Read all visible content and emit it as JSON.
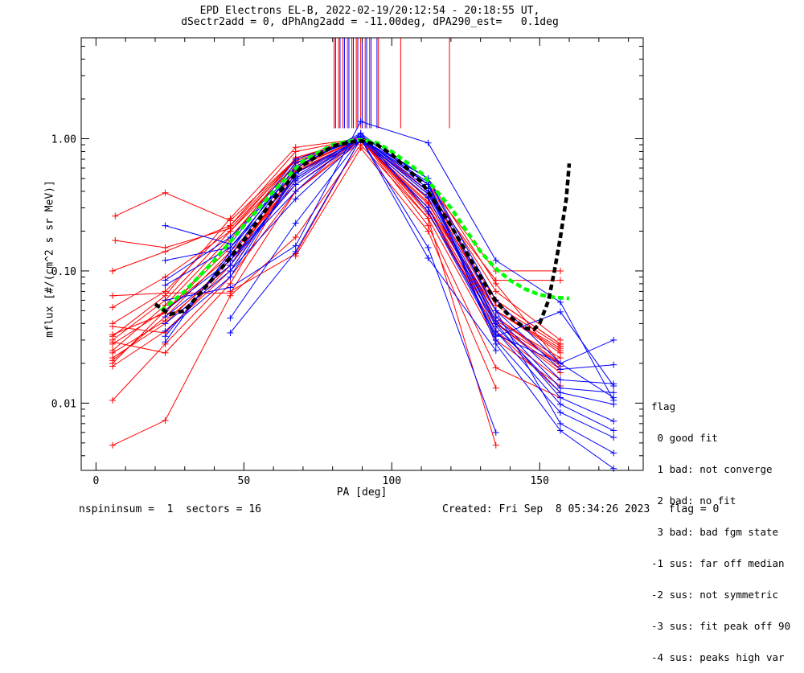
{
  "header": {
    "title_line1": "EPD Electrons EL-B, 2022-02-19/20:12:54 - 20:18:55 UT,",
    "title_line2": "dSectr2add = 0, dPhAng2add = -11.00deg, dPA290_est=   0.1deg"
  },
  "footer": {
    "left": "nspininsum =  1  sectors = 16",
    "right": "Created: Fri Sep  8 05:34:26 2023   flag = 0"
  },
  "flag_legend": {
    "title": "flag",
    "entries": [
      " 0 good fit",
      " 1 bad: not converge",
      " 2 bad: no fit",
      " 3 bad: bad fgm state",
      "-1 sus: far off median",
      "-2 sus: not symmetric",
      "-3 sus: fit peak off 90",
      "-4 sus: peaks high var"
    ]
  },
  "chart_data": {
    "type": "line",
    "xlabel": "PA [deg]",
    "ylabel": "mflux [#/(cm^2 s sr MeV)]",
    "xlim": [
      -5,
      185
    ],
    "ylim": [
      0.0031,
      5.8
    ],
    "yscale": "log",
    "x_ticks": [
      0,
      50,
      100,
      150
    ],
    "y_ticks": [
      {
        "value": 0.01,
        "label": "0.01"
      },
      {
        "value": 0.1,
        "label": "0.10"
      },
      {
        "value": 1.0,
        "label": "1.00"
      }
    ],
    "colors": {
      "red": "#ff0000",
      "blue": "#0000ff",
      "green": "#00ff00",
      "black": "#000000"
    },
    "peak_markers": {
      "ymin": 1.2,
      "ymax": 5.8,
      "red_x": [
        80.5,
        82.0,
        83.5,
        85.0,
        86.5,
        88.0,
        89.5,
        91.0,
        92.5,
        95.5,
        103.0,
        119.5
      ],
      "blue_x": [
        81.0,
        82.5,
        84.0,
        85.5,
        87.0,
        88.5,
        90.0,
        91.5,
        93.0,
        95.0
      ]
    },
    "series": [
      {
        "color": "red",
        "x": [
          5.6,
          23.4,
          45.4,
          67.5,
          89.5,
          112.3,
          135.2,
          157.0
        ],
        "y": [
          0.02,
          0.05,
          0.15,
          0.6,
          1.0,
          0.35,
          0.045,
          0.02
        ]
      },
      {
        "color": "red",
        "x": [
          5.6,
          23.4,
          45.4,
          67.5,
          89.5,
          112.3,
          135.2,
          157.0
        ],
        "y": [
          0.022,
          0.04,
          0.12,
          0.5,
          1.0,
          0.3,
          0.04,
          0.018
        ]
      },
      {
        "color": "red",
        "x": [
          5.6,
          23.4,
          45.4,
          67.5,
          89.5,
          112.3,
          135.2,
          157.0
        ],
        "y": [
          0.019,
          0.035,
          0.1,
          0.55,
          0.95,
          0.32,
          0.05,
          0.025
        ]
      },
      {
        "color": "red",
        "x": [
          5.6,
          23.4,
          45.4,
          67.5,
          89.5,
          112.3,
          135.2,
          157.0
        ],
        "y": [
          0.03,
          0.06,
          0.2,
          0.7,
          1.05,
          0.4,
          0.06,
          0.028
        ]
      },
      {
        "color": "red",
        "x": [
          5.6,
          23.4,
          45.4,
          67.5,
          89.5,
          112.3,
          135.2,
          157.0
        ],
        "y": [
          0.025,
          0.055,
          0.18,
          0.65,
          1.02,
          0.38,
          0.055,
          0.027
        ]
      },
      {
        "color": "red",
        "x": [
          5.6,
          23.4,
          45.4,
          67.5,
          89.5,
          112.3,
          135.2,
          157.0
        ],
        "y": [
          0.04,
          0.07,
          0.22,
          0.8,
          1.0,
          0.45,
          0.07,
          0.03
        ]
      },
      {
        "color": "red",
        "x": [
          5.6,
          23.4,
          45.4,
          67.5,
          89.5,
          112.3,
          135.2,
          157.0
        ],
        "y": [
          0.032,
          0.065,
          0.25,
          0.86,
          1.0,
          0.5,
          0.08,
          0.02
        ]
      },
      {
        "color": "red",
        "x": [
          5.6,
          23.4,
          45.4,
          67.5,
          89.5,
          112.3,
          135.2,
          157.0
        ],
        "y": [
          0.021,
          0.045,
          0.14,
          0.45,
          1.0,
          0.28,
          0.035,
          0.015
        ]
      },
      {
        "color": "red",
        "x": [
          5.6,
          23.4,
          45.4,
          67.5,
          89.5,
          112.3,
          135.2,
          157.0
        ],
        "y": [
          0.028,
          0.05,
          0.13,
          0.5,
          1.0,
          0.3,
          0.035,
          0.012
        ]
      },
      {
        "color": "red",
        "x": [
          5.6,
          23.4,
          45.4,
          67.5,
          89.5,
          112.3,
          135.2,
          157.0
        ],
        "y": [
          0.024,
          0.042,
          0.11,
          0.58,
          0.97,
          0.33,
          0.042,
          0.022
        ]
      },
      {
        "color": "red",
        "x": [
          5.6,
          23.4,
          45.4,
          67.5,
          89.5,
          112.3,
          135.2,
          157.0
        ],
        "y": [
          0.053,
          0.09,
          0.2,
          0.62,
          1.0,
          0.4,
          0.05,
          0.026
        ]
      },
      {
        "color": "red",
        "x": [
          5.6,
          23.4,
          45.4,
          67.5,
          89.5,
          112.3,
          135.2,
          157.0
        ],
        "y": [
          0.033,
          0.048,
          0.17,
          0.72,
          1.0,
          0.35,
          0.045,
          0.019
        ]
      },
      {
        "color": "red",
        "x": [
          5.6,
          23.4,
          45.4,
          67.5,
          89.5,
          112.3,
          135.2,
          157.0
        ],
        "y": [
          0.0105,
          0.028,
          0.09,
          0.4,
          0.95,
          0.3,
          0.04,
          0.017
        ]
      },
      {
        "color": "red",
        "x": [
          5.6,
          23.4,
          45.4,
          67.5,
          89.5,
          112.3,
          135.2
        ],
        "y": [
          0.0048,
          0.0074,
          0.065,
          0.18,
          0.9,
          0.25,
          0.0048
        ]
      },
      {
        "color": "red",
        "x": [
          5.6,
          23.4,
          45.4,
          67.5,
          89.5,
          112.3,
          135.2,
          157.0
        ],
        "y": [
          0.1,
          0.14,
          0.22,
          0.7,
          1.0,
          0.4,
          0.06,
          0.028
        ]
      },
      {
        "color": "red",
        "x": [
          6.5,
          23.4,
          45.4,
          67.5,
          89.5,
          112.3,
          135.2,
          157.0
        ],
        "y": [
          0.26,
          0.39,
          0.24,
          0.7,
          1.0,
          0.45,
          0.1,
          0.1
        ]
      },
      {
        "color": "red",
        "x": [
          6.5,
          23.4,
          45.4,
          67.5,
          89.5,
          112.3,
          135.2,
          157.0
        ],
        "y": [
          0.17,
          0.15,
          0.21,
          0.68,
          1.0,
          0.4,
          0.085,
          0.085
        ]
      },
      {
        "color": "red",
        "x": [
          5.6,
          23.4,
          45.4,
          67.5,
          89.5,
          112.3,
          135.2,
          157.0
        ],
        "y": [
          0.065,
          0.068,
          0.068,
          0.4,
          1.0,
          0.3,
          0.05,
          0.024
        ]
      },
      {
        "color": "red",
        "x": [
          5.6,
          23.4,
          45.4,
          67.5,
          89.5,
          112.3,
          135.2,
          157.0
        ],
        "y": [
          0.038,
          0.034,
          0.11,
          0.6,
          1.0,
          0.27,
          0.04,
          0.02
        ]
      },
      {
        "color": "red",
        "x": [
          5.6,
          23.4,
          45.4,
          67.5,
          89.5,
          112.3,
          135.2,
          157.0
        ],
        "y": [
          0.029,
          0.024,
          0.08,
          0.56,
          1.0,
          0.25,
          0.03,
          0.0135
        ]
      },
      {
        "color": "red",
        "x": [
          45.4,
          67.5,
          89.5,
          112.3,
          135.2,
          157.0
        ],
        "y": [
          0.07,
          0.135,
          1.0,
          0.22,
          0.0185,
          0.011
        ]
      },
      {
        "color": "red",
        "x": [
          67.5,
          89.5,
          112.3,
          135.2
        ],
        "y": [
          0.13,
          0.85,
          0.2,
          0.013
        ]
      },
      {
        "color": "blue",
        "x": [
          23.4,
          45.4,
          67.5,
          89.5,
          112.3,
          135.2,
          157.0,
          175.0
        ],
        "y": [
          0.22,
          0.16,
          0.7,
          1.0,
          0.5,
          0.06,
          0.02,
          0.03
        ]
      },
      {
        "color": "blue",
        "x": [
          23.4,
          45.4,
          67.5,
          89.5,
          112.3,
          135.2,
          157.0,
          175.0
        ],
        "y": [
          0.12,
          0.15,
          0.6,
          1.1,
          0.45,
          0.05,
          0.018,
          0.0195
        ]
      },
      {
        "color": "blue",
        "x": [
          23.4,
          45.4,
          67.5,
          89.5,
          112.3,
          135.2,
          157.0,
          175.0
        ],
        "y": [
          0.085,
          0.18,
          0.55,
          1.0,
          0.4,
          0.045,
          0.015,
          0.014
        ]
      },
      {
        "color": "blue",
        "x": [
          23.4,
          45.4,
          67.5,
          89.5,
          112.3,
          135.2,
          157.0,
          175.0
        ],
        "y": [
          0.078,
          0.15,
          0.5,
          1.0,
          0.38,
          0.042,
          0.013,
          0.012
        ]
      },
      {
        "color": "blue",
        "x": [
          23.4,
          45.4,
          67.5,
          89.5,
          112.3,
          135.2,
          157.0,
          175.0
        ],
        "y": [
          0.05,
          0.12,
          0.45,
          0.97,
          0.36,
          0.038,
          0.012,
          0.0098
        ]
      },
      {
        "color": "blue",
        "x": [
          23.4,
          45.4,
          67.5,
          89.5,
          112.3,
          135.2,
          157.0,
          175.0
        ],
        "y": [
          0.045,
          0.11,
          0.48,
          1.0,
          0.4,
          0.04,
          0.011,
          0.0073
        ]
      },
      {
        "color": "blue",
        "x": [
          23.4,
          45.4,
          67.5,
          89.5,
          112.3,
          135.2,
          157.0,
          175.0
        ],
        "y": [
          0.04,
          0.1,
          0.52,
          1.02,
          0.42,
          0.035,
          0.0098,
          0.0062
        ]
      },
      {
        "color": "blue",
        "x": [
          23.4,
          45.4,
          67.5,
          89.5,
          112.3,
          135.2,
          157.0,
          175.0
        ],
        "y": [
          0.035,
          0.09,
          0.55,
          1.0,
          0.45,
          0.03,
          0.0085,
          0.0055
        ]
      },
      {
        "color": "blue",
        "x": [
          23.4,
          45.4,
          67.5,
          89.5,
          112.3,
          135.2,
          157.0,
          175.0
        ],
        "y": [
          0.032,
          0.13,
          0.62,
          1.05,
          0.5,
          0.05,
          0.007,
          0.0042
        ]
      },
      {
        "color": "blue",
        "x": [
          23.4,
          45.4,
          67.5,
          89.5,
          112.3,
          135.2,
          157.0,
          175.0
        ],
        "y": [
          0.029,
          0.14,
          0.66,
          1.0,
          0.47,
          0.028,
          0.0062,
          0.0032
        ]
      },
      {
        "color": "blue",
        "x": [
          45.4,
          67.5,
          89.5,
          112.3,
          135.2
        ],
        "y": [
          0.044,
          0.23,
          1.0,
          0.15,
          0.006
        ]
      },
      {
        "color": "blue",
        "x": [
          45.4,
          67.5,
          89.5,
          112.3,
          135.2
        ],
        "y": [
          0.034,
          0.14,
          1.0,
          0.125,
          0.025
        ]
      },
      {
        "color": "blue",
        "x": [
          45.4,
          67.5,
          89.5,
          112.3,
          135.2,
          157.0,
          175.0
        ],
        "y": [
          0.1,
          0.35,
          1.0,
          0.3,
          0.033,
          0.02,
          0.011
        ]
      },
      {
        "color": "blue",
        "x": [
          45.4,
          67.5,
          89.5,
          112.3,
          135.2,
          157.0,
          175.0
        ],
        "y": [
          0.12,
          0.4,
          1.1,
          0.28,
          0.032,
          0.049,
          0.0135
        ]
      },
      {
        "color": "blue",
        "x": [
          23.4,
          45.4,
          67.5,
          89.5,
          112.3,
          135.2,
          157.0,
          175.0
        ],
        "y": [
          0.06,
          0.075,
          0.155,
          1.35,
          0.93,
          0.12,
          0.058,
          0.0105
        ]
      }
    ],
    "fits": [
      {
        "color": "green",
        "x": [
          22,
          30,
          40,
          50,
          60,
          70,
          80,
          88,
          90,
          95,
          100,
          110,
          120,
          130,
          135,
          140,
          145,
          150,
          155,
          160
        ],
        "y": [
          0.05,
          0.07,
          0.12,
          0.22,
          0.4,
          0.68,
          0.9,
          0.98,
          0.98,
          0.93,
          0.8,
          0.55,
          0.3,
          0.14,
          0.105,
          0.085,
          0.073,
          0.066,
          0.063,
          0.062
        ]
      },
      {
        "color": "black",
        "x": [
          20,
          25,
          30,
          40,
          50,
          60,
          70,
          80,
          88,
          90,
          95,
          100,
          110,
          120,
          130,
          135,
          140,
          145,
          148,
          150,
          153,
          155,
          157,
          159,
          160
        ],
        "y": [
          0.056,
          0.047,
          0.05,
          0.09,
          0.17,
          0.35,
          0.63,
          0.88,
          0.96,
          0.96,
          0.9,
          0.76,
          0.47,
          0.22,
          0.09,
          0.06,
          0.045,
          0.037,
          0.036,
          0.04,
          0.06,
          0.1,
          0.18,
          0.35,
          0.65
        ]
      }
    ]
  }
}
